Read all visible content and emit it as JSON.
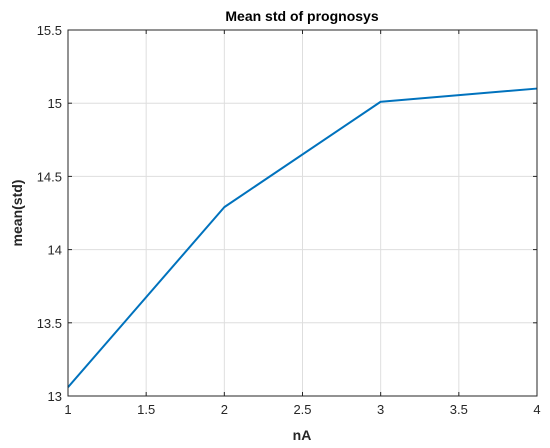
{
  "chart_data": {
    "type": "line",
    "title": "Mean std of prognosys",
    "xlabel": "nA",
    "ylabel": "mean(std)",
    "xlim": [
      1,
      4
    ],
    "ylim": [
      13,
      15.5
    ],
    "x_ticks": [
      "1",
      "1.5",
      "2",
      "2.5",
      "3",
      "3.5",
      "4"
    ],
    "y_ticks": [
      "13",
      "13.5",
      "14",
      "14.5",
      "15",
      "15.5"
    ],
    "grid": true,
    "series": [
      {
        "x": [
          1,
          2,
          3,
          4
        ],
        "y": [
          13.06,
          14.29,
          15.01,
          15.1
        ],
        "color": "#0072BD"
      }
    ]
  }
}
